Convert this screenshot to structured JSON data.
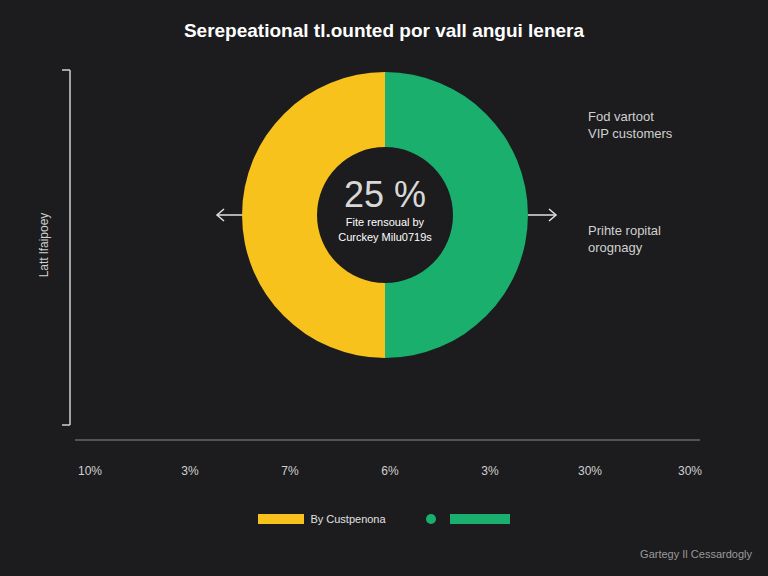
{
  "chart_data": {
    "type": "pie",
    "title": "Serepeational tl.ounted por vall angui lenera",
    "categories": [
      "By Custpenona",
      null
    ],
    "values": [
      50,
      50
    ],
    "colors": [
      "#f7c21b",
      "#1aaf6c"
    ],
    "legend": "bottom",
    "center_value": "25 %",
    "center_text": [
      "Fite rensoual by",
      "Curckey Milu0719s"
    ],
    "right_labels": [
      [
        "Fod vartoot",
        "VIP customers"
      ],
      [
        "Prihte ropital",
        "orognagy"
      ]
    ],
    "left_label": "Latt lfaipoey",
    "bottom_labels": [
      "10%",
      "3%",
      "7%",
      "6%",
      "3%",
      "30%",
      "30%"
    ],
    "footer": "Gartegy Il Cessardogly"
  }
}
